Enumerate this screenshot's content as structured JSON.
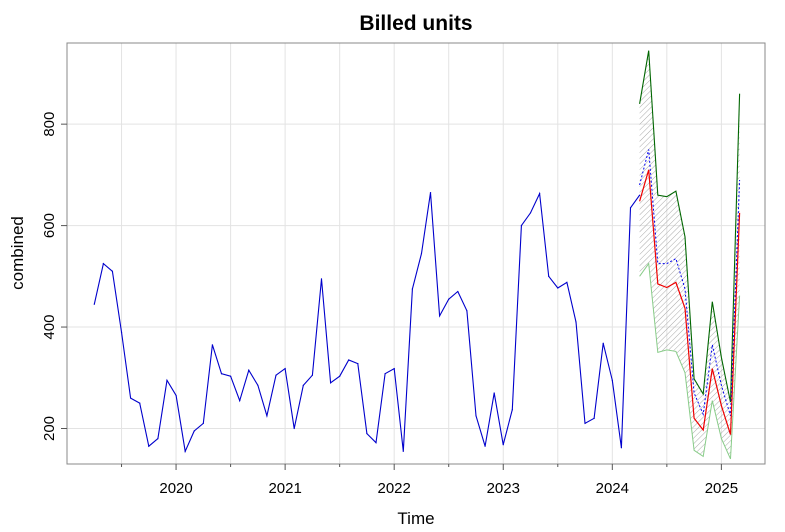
{
  "chart_data": {
    "type": "line",
    "title": "Billed units",
    "xlabel": "Time",
    "ylabel": "combined",
    "xlim": [
      2019.0,
      2025.4
    ],
    "ylim": [
      130,
      960
    ],
    "x_ticks": [
      2020,
      2021,
      2022,
      2023,
      2024,
      2025
    ],
    "x_tick_labels": [
      "2020",
      "2021",
      "2022",
      "2023",
      "2024",
      "2025"
    ],
    "x_minor_ticks": [
      2019.5,
      2020.5,
      2021.5,
      2022.5,
      2023.5,
      2024.5
    ],
    "y_ticks": [
      200,
      400,
      600,
      800
    ],
    "y_tick_labels": [
      "200",
      "400",
      "600",
      "800"
    ],
    "grid": true,
    "legend": "none",
    "colors": {
      "observed": "#0000cc",
      "forecast_red": "#ee0000",
      "forecast_blue": "#0000ee",
      "upper": "#006600",
      "lower": "#88cc88",
      "band": "#aaaaaa"
    },
    "observed": {
      "start": 2019.25,
      "step": 0.0833333,
      "values": [
        445,
        525,
        510,
        390,
        260,
        250,
        165,
        180,
        295,
        265,
        155,
        195,
        210,
        365,
        308,
        303,
        255,
        315,
        285,
        225,
        305,
        318,
        200,
        285,
        305,
        495,
        290,
        303,
        335,
        328,
        190,
        172,
        308,
        318,
        155,
        475,
        545,
        665,
        422,
        455,
        470,
        432,
        225,
        165,
        270,
        168,
        237,
        600,
        625,
        663,
        500,
        477,
        488,
        410,
        210,
        220,
        368,
        295,
        162,
        635,
        660
      ]
    },
    "forecast": {
      "start": 2024.25,
      "step": 0.0833333,
      "red": [
        648,
        710,
        485,
        478,
        488,
        437,
        220,
        197,
        318,
        245,
        188,
        625
      ],
      "blue": [
        680,
        750,
        525,
        525,
        535,
        475,
        270,
        228,
        365,
        285,
        225,
        690
      ],
      "upper": [
        840,
        945,
        660,
        657,
        668,
        578,
        298,
        268,
        450,
        340,
        252,
        860
      ],
      "lower": [
        500,
        525,
        350,
        355,
        352,
        310,
        157,
        145,
        255,
        180,
        140,
        462
      ]
    }
  }
}
